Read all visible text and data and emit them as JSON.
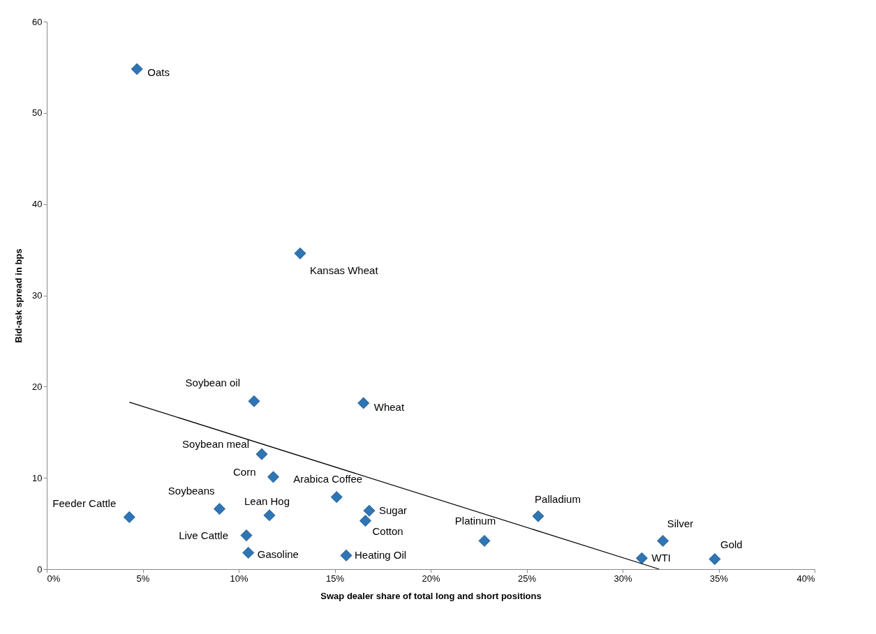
{
  "chart_data": {
    "type": "scatter",
    "xlabel": "Swap dealer share of total long and short positions",
    "ylabel": "Bid-ask spread in bps",
    "xlim": [
      0,
      40
    ],
    "ylim": [
      0,
      60
    ],
    "xticks": [
      {
        "value": 0,
        "label": "0%"
      },
      {
        "value": 5,
        "label": "5%"
      },
      {
        "value": 10,
        "label": "10%"
      },
      {
        "value": 15,
        "label": "15%"
      },
      {
        "value": 20,
        "label": "20%"
      },
      {
        "value": 25,
        "label": "25%"
      },
      {
        "value": 30,
        "label": "30%"
      },
      {
        "value": 35,
        "label": "35%"
      },
      {
        "value": 40,
        "label": "40%"
      }
    ],
    "yticks": [
      0,
      10,
      20,
      30,
      40,
      50,
      60
    ],
    "grid": false,
    "series": [
      {
        "type": "scatter",
        "color": "#2e75b6",
        "marker": "diamond",
        "x": [
          4.7,
          13.2,
          10.8,
          16.5,
          11.2,
          11.8,
          15.1,
          4.3,
          9.0,
          11.6,
          16.8,
          16.6,
          10.4,
          10.5,
          15.6,
          22.8,
          25.6,
          32.1,
          31.0,
          34.8
        ],
        "values": [
          54.8,
          34.6,
          18.4,
          18.2,
          12.6,
          10.1,
          7.9,
          5.7,
          6.6,
          5.9,
          6.4,
          5.3,
          3.7,
          1.8,
          1.5,
          3.1,
          5.8,
          3.1,
          1.2,
          1.1
        ]
      },
      {
        "type": "line",
        "color": "#000000",
        "x": [
          4.3,
          31.9
        ],
        "values": [
          18.3,
          0
        ]
      }
    ],
    "annotations": [
      {
        "text": "Oats",
        "x": 4.7,
        "y": 54.8
      },
      {
        "text": "Kansas  Wheat",
        "x": 13.2,
        "y": 34.6
      },
      {
        "text": "Soybean oil",
        "x": 10.8,
        "y": 18.4
      },
      {
        "text": "Wheat",
        "x": 16.5,
        "y": 18.2
      },
      {
        "text": "Soybean meal",
        "x": 11.2,
        "y": 12.6
      },
      {
        "text": "Corn",
        "x": 11.8,
        "y": 10.1
      },
      {
        "text": "Arabica Coffee",
        "x": 15.1,
        "y": 7.9
      },
      {
        "text": "Feeder Cattle",
        "x": 4.3,
        "y": 5.7
      },
      {
        "text": "Soybeans",
        "x": 9.0,
        "y": 6.6
      },
      {
        "text": "Lean Hog",
        "x": 11.6,
        "y": 5.9
      },
      {
        "text": "Sugar",
        "x": 16.8,
        "y": 6.4
      },
      {
        "text": "Cotton",
        "x": 16.6,
        "y": 5.3
      },
      {
        "text": "Live Cattle",
        "x": 10.4,
        "y": 3.7
      },
      {
        "text": "Gasoline",
        "x": 10.5,
        "y": 1.8
      },
      {
        "text": "Heating Oil",
        "x": 15.6,
        "y": 1.5
      },
      {
        "text": "Platinum",
        "x": 22.8,
        "y": 3.1
      },
      {
        "text": "Palladium",
        "x": 25.6,
        "y": 5.8
      },
      {
        "text": "Silver",
        "x": 32.1,
        "y": 3.1
      },
      {
        "text": "WTI",
        "x": 31.0,
        "y": 1.2
      },
      {
        "text": "Gold",
        "x": 34.8,
        "y": 1.1
      }
    ]
  }
}
